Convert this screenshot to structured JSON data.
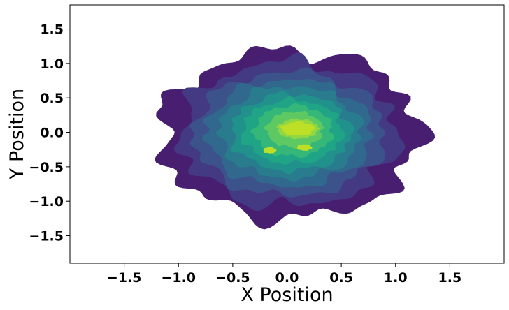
{
  "chart_data": {
    "type": "contour",
    "title": "",
    "xlabel": "X Position",
    "ylabel": "Y Position",
    "xlim": [
      -2.0,
      2.0
    ],
    "ylim": [
      -1.9,
      1.85
    ],
    "x_ticks": [
      -1.5,
      -1.0,
      -0.5,
      0.0,
      0.5,
      1.0,
      1.5
    ],
    "x_tick_labels": [
      "−1.5",
      "−1.0",
      "−0.5",
      "0.0",
      "0.5",
      "1.0",
      "1.5"
    ],
    "y_ticks": [
      -1.5,
      -1.0,
      -0.5,
      0.0,
      0.5,
      1.0,
      1.5
    ],
    "y_tick_labels": [
      "−1.5",
      "−1.0",
      "−0.5",
      "0.0",
      "0.5",
      "1.0",
      "1.5"
    ],
    "grid": false,
    "legend": "none",
    "colormap": "viridis",
    "distribution": {
      "center": [
        0.05,
        0.0
      ],
      "extent_x": [
        -1.2,
        1.25
      ],
      "extent_y": [
        -1.35,
        1.2
      ],
      "peak": [
        0.1,
        0.05
      ]
    },
    "levels": [
      {
        "level": 1,
        "color": "#481f70",
        "rx": 1.2,
        "ry": 1.22,
        "cx": 0.03,
        "cy": -0.03
      },
      {
        "level": 2,
        "color": "#443983",
        "rx": 1.0,
        "ry": 1.05,
        "cx": 0.02,
        "cy": -0.02
      },
      {
        "level": 3,
        "color": "#3b528b",
        "rx": 0.88,
        "ry": 0.9,
        "cx": 0.02,
        "cy": -0.02
      },
      {
        "level": 4,
        "color": "#31688e",
        "rx": 0.76,
        "ry": 0.78,
        "cx": 0.02,
        "cy": -0.01
      },
      {
        "level": 5,
        "color": "#287c8e",
        "rx": 0.65,
        "ry": 0.67,
        "cx": 0.03,
        "cy": 0.0
      },
      {
        "level": 6,
        "color": "#21918c",
        "rx": 0.55,
        "ry": 0.56,
        "cx": 0.04,
        "cy": 0.0
      },
      {
        "level": 7,
        "color": "#20a486",
        "rx": 0.46,
        "ry": 0.46,
        "cx": 0.05,
        "cy": 0.01
      },
      {
        "level": 8,
        "color": "#35b779",
        "rx": 0.36,
        "ry": 0.37,
        "cx": 0.06,
        "cy": 0.02
      },
      {
        "level": 9,
        "color": "#5ec962",
        "rx": 0.26,
        "ry": 0.26,
        "cx": 0.07,
        "cy": 0.04
      },
      {
        "level": 10,
        "color": "#90d743",
        "rx": 0.19,
        "ry": 0.14,
        "cx": 0.1,
        "cy": 0.05
      }
    ],
    "peak_color": "#bddf26"
  }
}
